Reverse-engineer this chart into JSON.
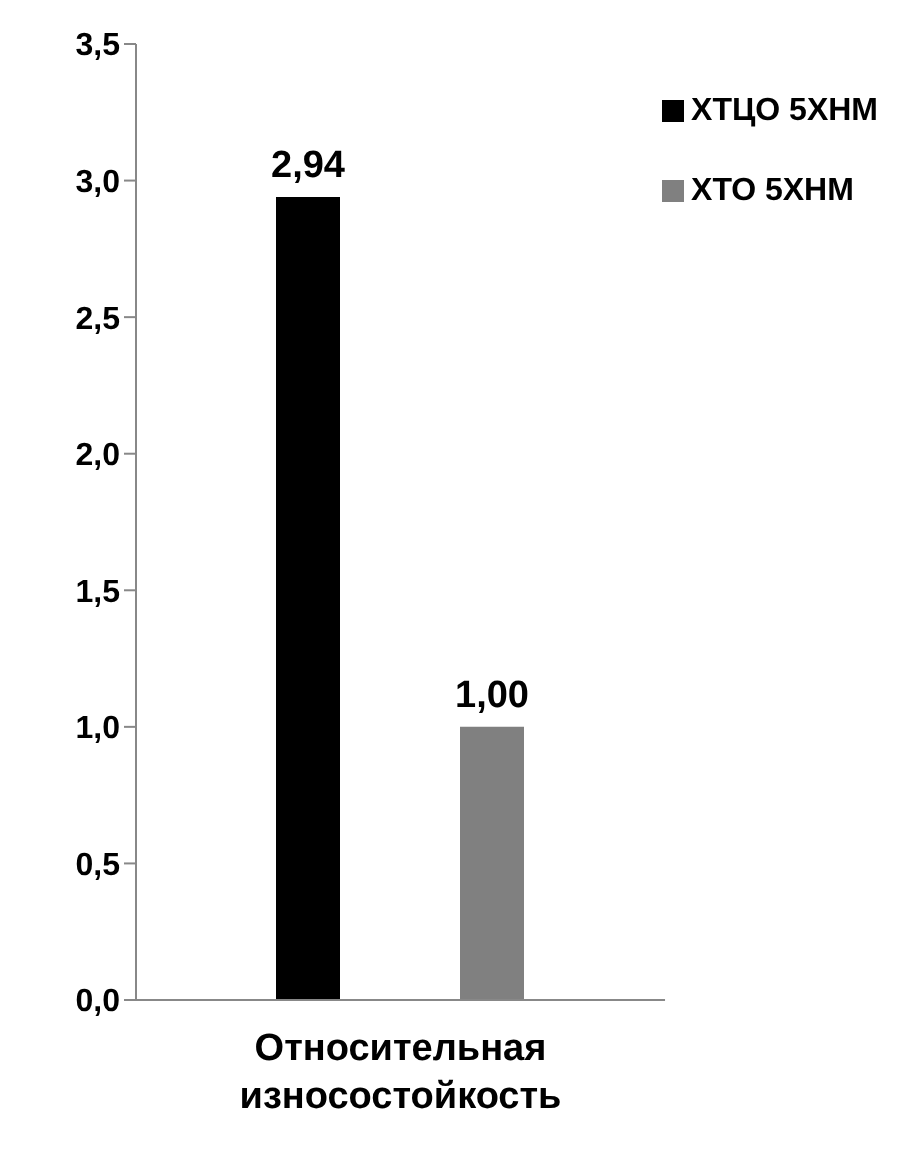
{
  "chart_data": {
    "type": "bar",
    "categories": [
      "Относительная износостойкость"
    ],
    "series": [
      {
        "name": "ХТЦО 5ХНМ",
        "color": "#000000",
        "values": [
          2.94
        ],
        "value_labels": [
          "2,94"
        ]
      },
      {
        "name": "ХТО 5ХНМ",
        "color": "#808080",
        "values": [
          1.0
        ],
        "value_labels": [
          "1,00"
        ]
      }
    ],
    "ylim": [
      0,
      3.5
    ],
    "yticks": [
      {
        "value": 0,
        "label": "0,0"
      },
      {
        "value": 0.5,
        "label": "0,5"
      },
      {
        "value": 1,
        "label": "1,0"
      },
      {
        "value": 1.5,
        "label": "1,5"
      },
      {
        "value": 2,
        "label": "2,0"
      },
      {
        "value": 2.5,
        "label": "2,5"
      },
      {
        "value": 3,
        "label": "3,0"
      },
      {
        "value": 3.5,
        "label": "3,5"
      }
    ],
    "grid": false,
    "legend": "top right"
  }
}
